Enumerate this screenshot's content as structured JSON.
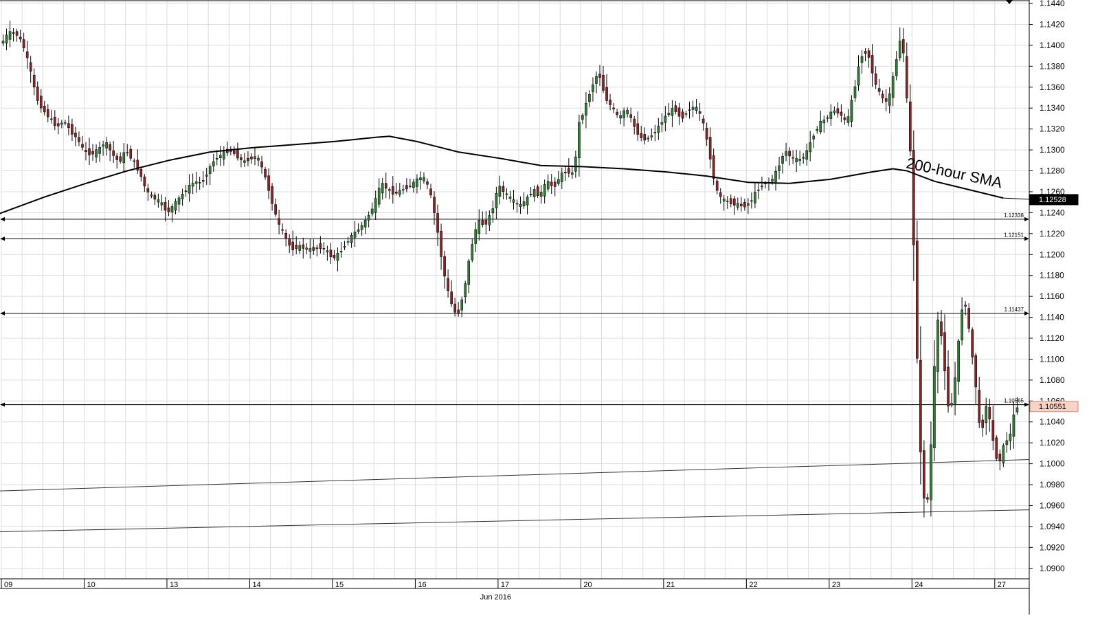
{
  "chart_data": {
    "type": "candlestick",
    "title": "",
    "xlabel": "Jun 2016",
    "ylabel": "",
    "ylim": [
      1.089,
      1.1442
    ],
    "grid": true,
    "y_ticks": [
      "1.0900",
      "1.0920",
      "1.0940",
      "1.0960",
      "1.0980",
      "1.1000",
      "1.1020",
      "1.1040",
      "1.1060",
      "1.1080",
      "1.1100",
      "1.1120",
      "1.1140",
      "1.1160",
      "1.1180",
      "1.1200",
      "1.1220",
      "1.1240",
      "1.1260",
      "1.1280",
      "1.1300",
      "1.1320",
      "1.1340",
      "1.1360",
      "1.1380",
      "1.1400",
      "1.1420",
      "1.1440"
    ],
    "x_days": [
      {
        "label": "09",
        "pos": 0
      },
      {
        "label": "10",
        "pos": 24
      },
      {
        "label": "13",
        "pos": 48
      },
      {
        "label": "14",
        "pos": 72
      },
      {
        "label": "15",
        "pos": 96
      },
      {
        "label": "16",
        "pos": 120
      },
      {
        "label": "17",
        "pos": 144
      },
      {
        "label": "20",
        "pos": 168
      },
      {
        "label": "21",
        "pos": 192
      },
      {
        "label": "22",
        "pos": 216
      },
      {
        "label": "23",
        "pos": 240
      },
      {
        "label": "24",
        "pos": 264
      },
      {
        "label": "27",
        "pos": 288
      }
    ],
    "total_bars": 298,
    "anchors": [
      [
        0,
        1.1402
      ],
      [
        2,
        1.1412
      ],
      [
        4,
        1.1412
      ],
      [
        6,
        1.1402
      ],
      [
        8,
        1.138
      ],
      [
        10,
        1.135
      ],
      [
        12,
        1.1338
      ],
      [
        14,
        1.133
      ],
      [
        16,
        1.1322
      ],
      [
        18,
        1.1328
      ],
      [
        20,
        1.1318
      ],
      [
        22,
        1.131
      ],
      [
        24,
        1.1298
      ],
      [
        26,
        1.1296
      ],
      [
        28,
        1.13
      ],
      [
        30,
        1.1308
      ],
      [
        32,
        1.1296
      ],
      [
        34,
        1.1288
      ],
      [
        36,
        1.13
      ],
      [
        38,
        1.129
      ],
      [
        40,
        1.1278
      ],
      [
        42,
        1.126
      ],
      [
        44,
        1.1254
      ],
      [
        46,
        1.125
      ],
      [
        48,
        1.124
      ],
      [
        50,
        1.1248
      ],
      [
        52,
        1.1256
      ],
      [
        54,
        1.1264
      ],
      [
        56,
        1.127
      ],
      [
        58,
        1.1268
      ],
      [
        60,
        1.1282
      ],
      [
        62,
        1.1292
      ],
      [
        64,
        1.1296
      ],
      [
        66,
        1.13
      ],
      [
        68,
        1.1295
      ],
      [
        70,
        1.1288
      ],
      [
        72,
        1.1292
      ],
      [
        74,
        1.1294
      ],
      [
        76,
        1.1278
      ],
      [
        78,
        1.1255
      ],
      [
        80,
        1.123
      ],
      [
        82,
        1.1218
      ],
      [
        84,
        1.1205
      ],
      [
        86,
        1.1208
      ],
      [
        88,
        1.1206
      ],
      [
        90,
        1.1204
      ],
      [
        92,
        1.1208
      ],
      [
        94,
        1.1204
      ],
      [
        96,
        1.1196
      ],
      [
        98,
        1.1202
      ],
      [
        100,
        1.1212
      ],
      [
        102,
        1.122
      ],
      [
        104,
        1.1226
      ],
      [
        106,
        1.1235
      ],
      [
        108,
        1.1248
      ],
      [
        110,
        1.1268
      ],
      [
        112,
        1.1262
      ],
      [
        114,
        1.1258
      ],
      [
        116,
        1.1262
      ],
      [
        118,
        1.1265
      ],
      [
        120,
        1.127
      ],
      [
        122,
        1.1275
      ],
      [
        124,
        1.1262
      ],
      [
        126,
        1.123
      ],
      [
        128,
        1.1185
      ],
      [
        130,
        1.1156
      ],
      [
        132,
        1.114
      ],
      [
        134,
        1.1165
      ],
      [
        136,
        1.1205
      ],
      [
        138,
        1.1232
      ],
      [
        140,
        1.1228
      ],
      [
        142,
        1.124
      ],
      [
        144,
        1.1266
      ],
      [
        146,
        1.1258
      ],
      [
        148,
        1.1252
      ],
      [
        150,
        1.1246
      ],
      [
        152,
        1.1252
      ],
      [
        154,
        1.1262
      ],
      [
        156,
        1.1256
      ],
      [
        158,
        1.127
      ],
      [
        160,
        1.1264
      ],
      [
        162,
        1.1276
      ],
      [
        164,
        1.128
      ],
      [
        166,
        1.1276
      ],
      [
        167,
        1.1322
      ],
      [
        169,
        1.134
      ],
      [
        171,
        1.136
      ],
      [
        173,
        1.1375
      ],
      [
        175,
        1.135
      ],
      [
        177,
        1.134
      ],
      [
        179,
        1.133
      ],
      [
        181,
        1.134
      ],
      [
        183,
        1.1325
      ],
      [
        185,
        1.1312
      ],
      [
        187,
        1.131
      ],
      [
        189,
        1.1316
      ],
      [
        191,
        1.1325
      ],
      [
        193,
        1.1335
      ],
      [
        195,
        1.134
      ],
      [
        197,
        1.133
      ],
      [
        199,
        1.1338
      ],
      [
        201,
        1.1342
      ],
      [
        203,
        1.133
      ],
      [
        205,
        1.13
      ],
      [
        207,
        1.1262
      ],
      [
        209,
        1.1252
      ],
      [
        211,
        1.125
      ],
      [
        213,
        1.1248
      ],
      [
        215,
        1.1246
      ],
      [
        217,
        1.125
      ],
      [
        219,
        1.1262
      ],
      [
        221,
        1.1268
      ],
      [
        223,
        1.127
      ],
      [
        225,
        1.1282
      ],
      [
        227,
        1.13
      ],
      [
        229,
        1.1292
      ],
      [
        231,
        1.129
      ],
      [
        233,
        1.1295
      ],
      [
        235,
        1.1312
      ],
      [
        237,
        1.1325
      ],
      [
        239,
        1.133
      ],
      [
        241,
        1.1338
      ],
      [
        243,
        1.1335
      ],
      [
        245,
        1.1325
      ],
      [
        247,
        1.1355
      ],
      [
        249,
        1.139
      ],
      [
        251,
        1.1395
      ],
      [
        253,
        1.1365
      ],
      [
        255,
        1.135
      ],
      [
        257,
        1.1345
      ],
      [
        259,
        1.138
      ],
      [
        261,
        1.1415
      ],
      [
        262,
        1.136
      ],
      [
        263,
        1.133
      ],
      [
        264,
        1.125
      ],
      [
        265,
        1.115
      ],
      [
        266,
        1.103
      ],
      [
        267,
        1.098
      ],
      [
        268,
        1.095
      ],
      [
        269,
        1.099
      ],
      [
        270,
        1.106
      ],
      [
        271,
        1.114
      ],
      [
        272,
        1.113
      ],
      [
        273,
        1.111
      ],
      [
        274,
        1.106
      ],
      [
        275,
        1.105
      ],
      [
        276,
        1.107
      ],
      [
        277,
        1.11
      ],
      [
        278,
        1.114
      ],
      [
        279,
        1.116
      ],
      [
        280,
        1.114
      ],
      [
        281,
        1.111
      ],
      [
        282,
        1.109
      ],
      [
        283,
        1.105
      ],
      [
        284,
        1.102
      ],
      [
        285,
        1.106
      ],
      [
        286,
        1.105
      ],
      [
        287,
        1.103
      ],
      [
        288,
        1.101
      ],
      [
        289,
        1.1
      ],
      [
        290,
        1.101
      ],
      [
        291,
        1.1025
      ],
      [
        292,
        1.102
      ],
      [
        293,
        1.104
      ],
      [
        294,
        1.1055
      ]
    ],
    "sma": {
      "label": "200-hour SMA",
      "points": [
        [
          -2,
          1.1238
        ],
        [
          12,
          1.1255
        ],
        [
          24,
          1.1268
        ],
        [
          36,
          1.128
        ],
        [
          48,
          1.129
        ],
        [
          60,
          1.1298
        ],
        [
          72,
          1.1302
        ],
        [
          84,
          1.1305
        ],
        [
          96,
          1.1308
        ],
        [
          108,
          1.1312
        ],
        [
          112,
          1.1313
        ],
        [
          120,
          1.1308
        ],
        [
          132,
          1.1298
        ],
        [
          144,
          1.1292
        ],
        [
          156,
          1.1285
        ],
        [
          168,
          1.1284
        ],
        [
          180,
          1.1282
        ],
        [
          192,
          1.1279
        ],
        [
          204,
          1.1275
        ],
        [
          216,
          1.1269
        ],
        [
          228,
          1.1268
        ],
        [
          240,
          1.1272
        ],
        [
          252,
          1.1279
        ],
        [
          258,
          1.1282
        ],
        [
          262,
          1.128
        ],
        [
          270,
          1.127
        ],
        [
          280,
          1.1262
        ],
        [
          290,
          1.1254
        ]
      ]
    },
    "levels": [
      {
        "value": 1.12338,
        "label": "1.12338"
      },
      {
        "value": 1.12151,
        "label": "1.12151"
      },
      {
        "value": 1.11437,
        "label": "1.11437"
      },
      {
        "value": 1.10565,
        "label": "1.10565"
      }
    ],
    "trendlines": [
      {
        "start": 1.0974,
        "end": 1.1004
      },
      {
        "start": 1.0935,
        "end": 1.0956
      }
    ],
    "current_price": {
      "label": "1.10551",
      "value": 1.10551,
      "bg": "#f8d2c4"
    },
    "sma_price": {
      "label": "1.12528",
      "value": 1.12528,
      "bg": "#000000"
    },
    "colors": {
      "up": "#2e7d32",
      "down": "#8b2323",
      "grid": "#dcdcdc",
      "line": "#000000"
    }
  }
}
